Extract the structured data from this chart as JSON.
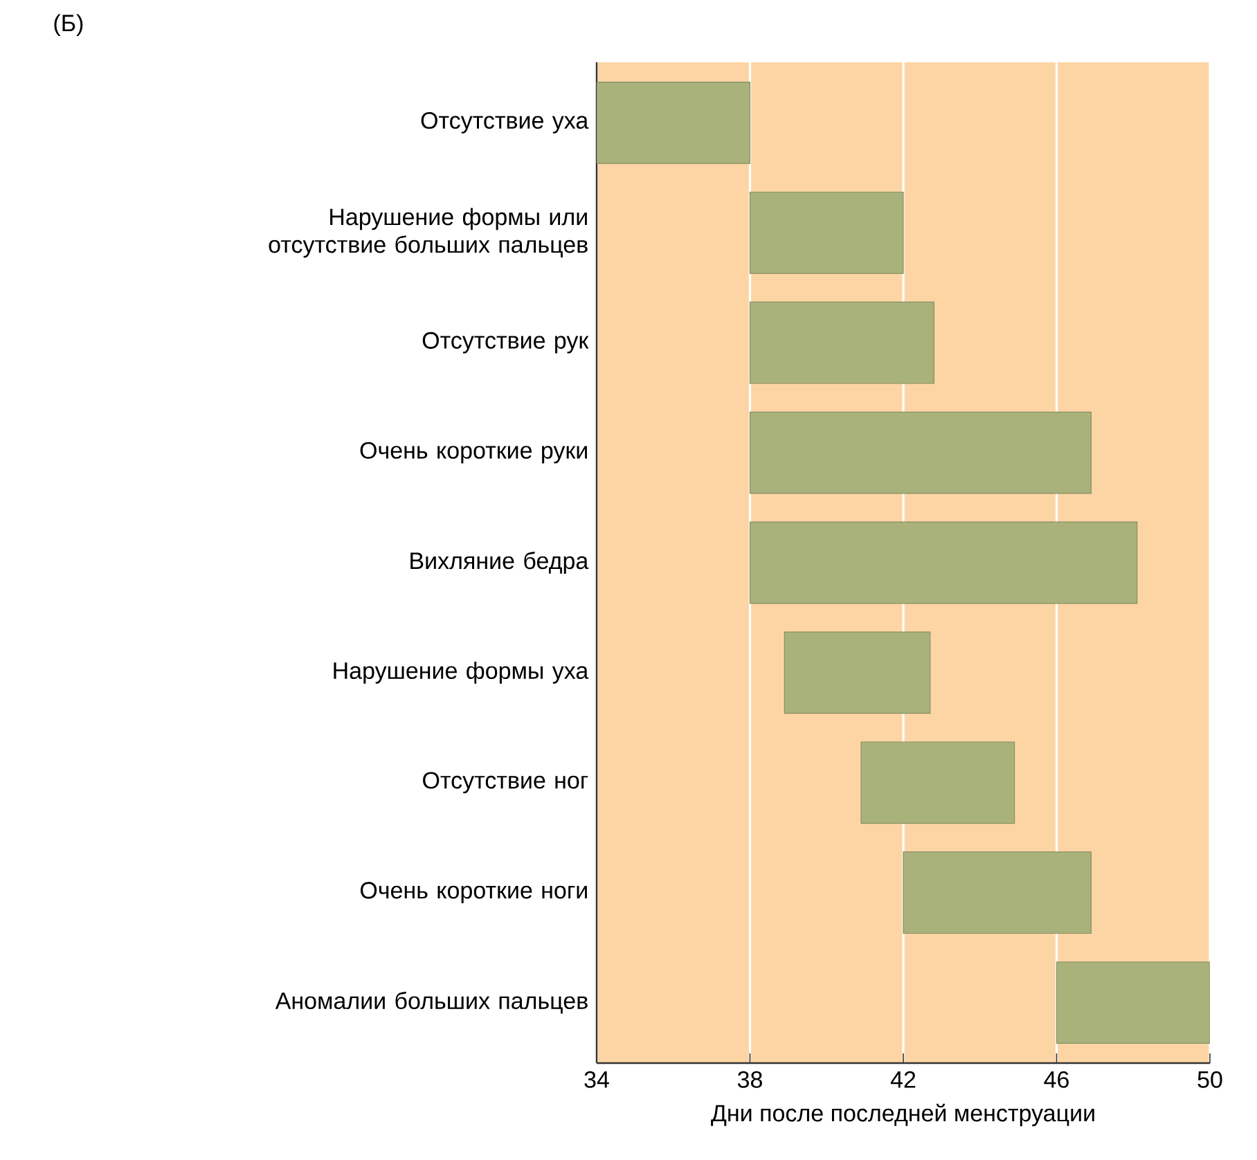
{
  "chart_data": {
    "type": "bar",
    "orientation": "horizontal",
    "title": "(Б)",
    "xlabel": "Дни после последней менструации",
    "categories": [
      "Отсутствие уха",
      "Нарушение формы или отсутствие больших пальцев",
      "Отсутствие рук",
      "Очень короткие руки",
      "Вихляние бедра",
      "Нарушение формы уха",
      "Отсутствие ног",
      "Очень короткие ноги",
      "Аномалии больших пальцев"
    ],
    "base": [
      34,
      38,
      38,
      38,
      38,
      38.9,
      40.9,
      42,
      46
    ],
    "values": [
      4,
      4,
      4.8,
      8.9,
      10.1,
      3.8,
      4.0,
      4.9,
      4
    ],
    "color": "#aab27c",
    "xlim": [
      34,
      50
    ],
    "xticks": [
      34,
      38,
      42,
      46,
      50
    ],
    "grid": "x"
  }
}
